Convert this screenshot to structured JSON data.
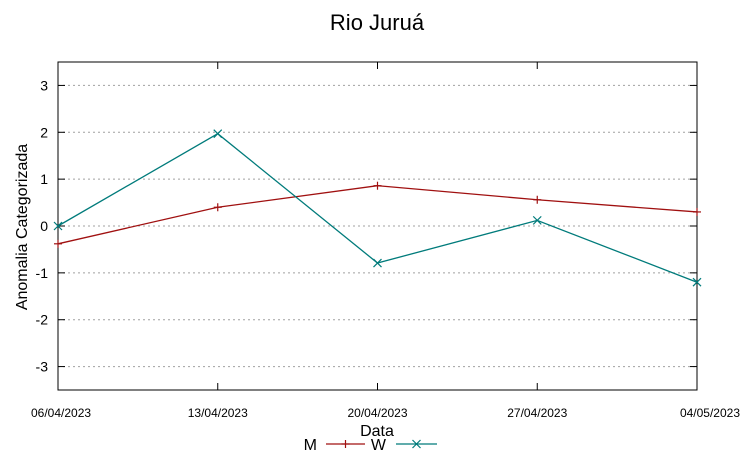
{
  "chart_data": {
    "type": "line",
    "title": "Rio Juruá",
    "xlabel": "Data",
    "ylabel": "Anomalia Categorizada",
    "categories": [
      "06/04/2023",
      "13/04/2023",
      "20/04/2023",
      "27/04/2023",
      "04/05/2023"
    ],
    "yticks": [
      -3,
      -2,
      -1,
      0,
      1,
      2,
      3
    ],
    "ylim": [
      -3.5,
      3.5
    ],
    "grid": true,
    "legend_position": "bottom",
    "series": [
      {
        "name": "M",
        "color": "#a01010",
        "marker": "plus",
        "values": [
          -0.38,
          0.4,
          0.86,
          0.56,
          0.3
        ]
      },
      {
        "name": "W",
        "color": "#007b7b",
        "marker": "x",
        "values": [
          0.0,
          1.97,
          -0.79,
          0.12,
          -1.2
        ]
      }
    ]
  }
}
